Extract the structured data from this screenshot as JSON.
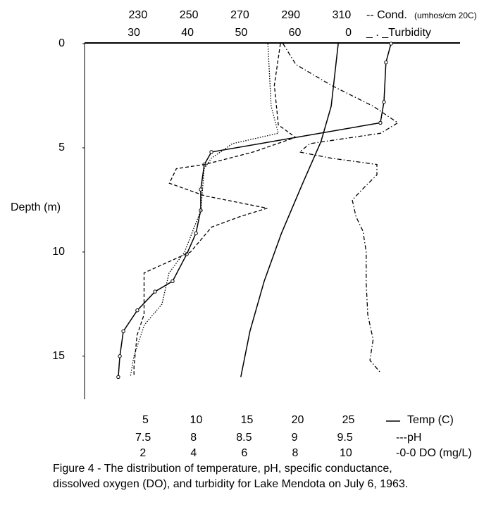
{
  "chart_data": {
    "type": "line",
    "ylabel": "Depth (m)",
    "ylim": [
      0,
      17
    ],
    "yticks": [
      0,
      5,
      10,
      15
    ],
    "y_inverted": true,
    "x_axes": [
      {
        "label": "-- Cond.",
        "unit": "(umhos/cm 20C)",
        "position": "top",
        "xlim": [
          209,
          356.5
        ],
        "xticks": [
          230,
          250,
          270,
          290,
          310
        ]
      },
      {
        "label": "_ . _Turbidity",
        "position": "top",
        "xlim": [
          20.8,
          90.8
        ],
        "xticks": [
          30,
          40,
          50,
          60,
          {
            "value": 70,
            "label": "0"
          }
        ]
      },
      {
        "label": "Temp (C)",
        "position": "bottom",
        "xlim": [
          -1,
          36
        ],
        "xticks": [
          5,
          10,
          15,
          20,
          25
        ]
      },
      {
        "label": "---pH",
        "position": "bottom",
        "xlim": [
          6.92,
          10.64
        ],
        "xticks": [
          7.5,
          8,
          8.5,
          9,
          9.5
        ]
      },
      {
        "label": "-0-0 DO (mg/L)",
        "position": "bottom",
        "xlim": [
          -0.3,
          14.5
        ],
        "xticks": [
          2,
          4,
          6,
          8,
          10
        ]
      }
    ],
    "series": [
      {
        "axis": 2,
        "style": "solid",
        "color": "#000000",
        "values": [
          24.0,
          23.3,
          22.3,
          20.5,
          18.4,
          16.7,
          15.3,
          14.4
        ],
        "depth": [
          0,
          3,
          4.7,
          6.7,
          9.1,
          11.4,
          13.8,
          16
        ]
      },
      {
        "axis": 4,
        "style": "solid",
        "color": "#000000",
        "markers": true,
        "values": [
          11.78,
          11.58,
          11.5,
          11.36,
          4.7,
          4.42,
          4.28,
          4.28,
          4.09,
          3.73,
          3.17,
          2.48,
          1.78,
          1.23,
          1.09,
          1.03
        ],
        "depth": [
          0,
          0.9,
          2.8,
          3.8,
          5.2,
          5.8,
          7.0,
          8.0,
          9.1,
          10.1,
          11.4,
          11.9,
          12.8,
          13.8,
          15.0,
          16.0
        ]
      },
      {
        "axis": 3,
        "style": "dashed",
        "color": "#000000",
        "values": [
          8.86,
          8.8,
          8.84,
          9.01,
          8.59,
          8.11,
          7.83,
          7.76,
          8.11,
          8.73,
          8.46,
          8.18,
          7.97,
          7.51,
          7.51,
          7.44,
          7.41,
          7.41
        ],
        "depth": [
          0,
          2,
          3.9,
          4.5,
          5.2,
          5.8,
          6.0,
          6.7,
          7.3,
          7.9,
          8.3,
          8.8,
          10,
          11,
          13,
          14,
          15.5,
          16
        ]
      },
      {
        "axis": 0,
        "style": "dotted",
        "color": "#000000",
        "values": [
          281.0,
          282.3,
          285.1,
          267.1,
          258.8,
          256.0,
          254.7,
          248.3,
          242.2,
          239.4,
          232.5,
          228.4,
          227.0
        ],
        "depth": [
          0,
          3,
          4.3,
          4.8,
          5.5,
          6,
          8,
          10,
          11,
          12.5,
          13.5,
          15,
          16
        ]
      },
      {
        "axis": 1,
        "style": "dashdot",
        "color": "#000000",
        "values": [
          57.8,
          60.2,
          66.8,
          74.6,
          79.2,
          76.0,
          62.8,
          60.9,
          66.8,
          75.3,
          75.3,
          73.3,
          70.7,
          71.4,
          72.7,
          73.3,
          73.3,
          73.6,
          74.6,
          74.0,
          76.0
        ],
        "depth": [
          0,
          1,
          2,
          3,
          3.8,
          4.3,
          4.8,
          5.2,
          5.5,
          5.8,
          6.3,
          6.8,
          7.5,
          8.3,
          9,
          10,
          11.5,
          13,
          14.2,
          15.2,
          15.8
        ]
      }
    ],
    "caption": [
      "Figure 4 - The distribution of temperature, pH, specific conductance,",
      "dissolved oxygen (DO), and turbidity for Lake Mendota on July 6, 1963."
    ]
  }
}
